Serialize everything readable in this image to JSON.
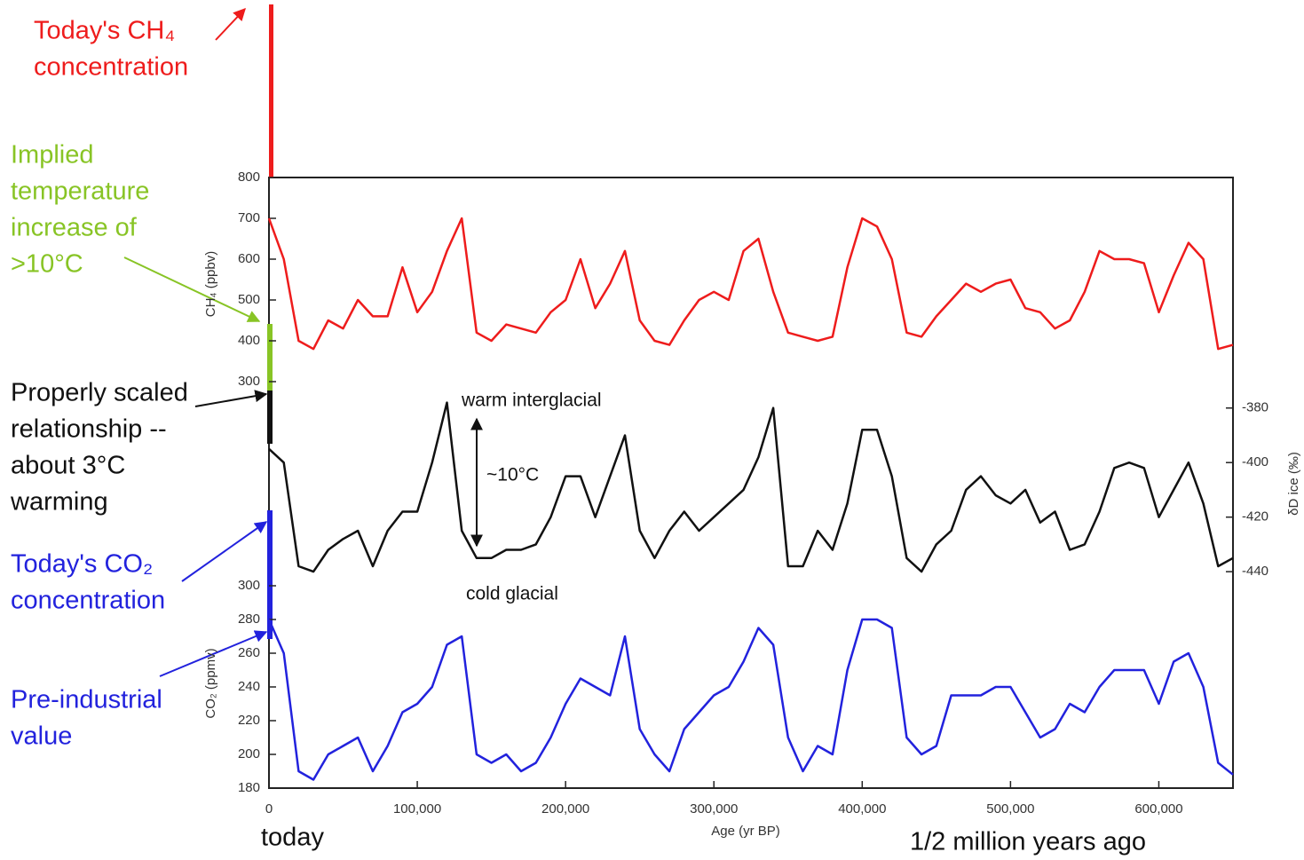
{
  "chart_data": {
    "type": "line",
    "xlabel": "Age (yr BP)",
    "xlim": [
      0,
      650000
    ],
    "xticks": [
      0,
      {
        "value": 100000,
        "label": "100,000"
      },
      {
        "value": 200000,
        "label": "200,000"
      },
      {
        "value": 300000,
        "label": "300,000"
      },
      {
        "value": 400000,
        "label": "400,000"
      },
      {
        "value": 500000,
        "label": "500,000"
      },
      {
        "value": 600000,
        "label": "600,000"
      }
    ],
    "x": [
      0,
      10000,
      20000,
      30000,
      40000,
      50000,
      60000,
      70000,
      80000,
      90000,
      100000,
      110000,
      120000,
      130000,
      140000,
      150000,
      160000,
      170000,
      180000,
      190000,
      200000,
      210000,
      220000,
      230000,
      240000,
      250000,
      260000,
      270000,
      280000,
      290000,
      300000,
      310000,
      320000,
      330000,
      340000,
      350000,
      360000,
      370000,
      380000,
      390000,
      400000,
      410000,
      420000,
      430000,
      440000,
      450000,
      460000,
      470000,
      480000,
      490000,
      500000,
      510000,
      520000,
      530000,
      540000,
      550000,
      560000,
      570000,
      580000,
      590000,
      600000,
      610000,
      620000,
      630000,
      640000,
      650000
    ],
    "series": [
      {
        "ylabel": "CH₄ (ppbv)",
        "color": "#ee1c1c",
        "side": "left",
        "ylim": [
          300,
          800
        ],
        "yticks": [
          300,
          400,
          500,
          600,
          700,
          800
        ],
        "values": [
          700,
          600,
          400,
          380,
          450,
          430,
          500,
          460,
          460,
          580,
          470,
          520,
          620,
          700,
          420,
          400,
          440,
          430,
          420,
          470,
          500,
          600,
          480,
          540,
          620,
          450,
          400,
          390,
          450,
          500,
          520,
          500,
          620,
          650,
          520,
          420,
          410,
          400,
          410,
          580,
          700,
          680,
          600,
          420,
          410,
          460,
          500,
          540,
          520,
          540,
          550,
          480,
          470,
          430,
          450,
          520,
          620,
          600,
          600,
          590,
          470,
          560,
          640,
          600,
          380,
          390
        ]
      },
      {
        "ylabel": "δD ice (‰)",
        "color": "#111111",
        "side": "right",
        "ylim": [
          -445,
          -370
        ],
        "yticks": [
          -380,
          -400,
          -420,
          -440
        ],
        "values": [
          -395,
          -400,
          -438,
          -440,
          -432,
          -428,
          -425,
          -438,
          -425,
          -418,
          -418,
          -400,
          -378,
          -425,
          -435,
          -435,
          -432,
          -432,
          -430,
          -420,
          -405,
          -405,
          -420,
          -405,
          -390,
          -425,
          -435,
          -425,
          -418,
          -425,
          -420,
          -415,
          -410,
          -398,
          -380,
          -438,
          -438,
          -425,
          -432,
          -415,
          -388,
          -388,
          -405,
          -435,
          -440,
          -430,
          -425,
          -410,
          -405,
          -412,
          -415,
          -410,
          -422,
          -418,
          -432,
          -430,
          -418,
          -402,
          -400,
          -402,
          -420,
          -410,
          -400,
          -415,
          -438,
          -435
        ]
      },
      {
        "ylabel": "CO₂ (ppmv)",
        "color": "#2222dd",
        "side": "left",
        "ylim": [
          180,
          300
        ],
        "yticks": [
          180,
          200,
          220,
          240,
          260,
          280,
          300
        ],
        "values": [
          280,
          260,
          190,
          185,
          200,
          205,
          210,
          190,
          205,
          225,
          230,
          240,
          265,
          270,
          200,
          195,
          200,
          190,
          195,
          210,
          230,
          245,
          240,
          235,
          270,
          215,
          200,
          190,
          215,
          225,
          235,
          240,
          255,
          275,
          265,
          210,
          190,
          205,
          200,
          250,
          280,
          280,
          275,
          210,
          200,
          205,
          235,
          235,
          235,
          240,
          240,
          225,
          210,
          215,
          230,
          225,
          240,
          250,
          250,
          250,
          230,
          255,
          260,
          240,
          195,
          188
        ]
      }
    ],
    "notes": [
      "warm interglacial",
      "~10°C",
      "cold glacial",
      "today",
      "1/2 million years ago"
    ],
    "annotations": [
      {
        "color": "#ee1c1c",
        "lines": [
          "Today's CH₄",
          "concentration"
        ]
      },
      {
        "color": "#88c425",
        "lines": [
          "Implied",
          "temperature",
          "increase of",
          ">10°C"
        ]
      },
      {
        "color": "#111111",
        "lines": [
          "Properly scaled",
          "relationship --",
          "about 3°C",
          "warming"
        ]
      },
      {
        "color": "#2222dd",
        "lines": [
          "Today's CO₂",
          "concentration"
        ]
      },
      {
        "color": "#2222dd",
        "lines": [
          "Pre-industrial",
          "value"
        ]
      }
    ]
  }
}
